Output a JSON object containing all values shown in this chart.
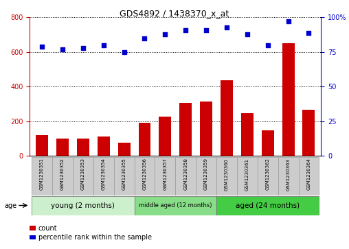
{
  "title": "GDS4892 / 1438370_x_at",
  "samples": [
    "GSM1230351",
    "GSM1230352",
    "GSM1230353",
    "GSM1230354",
    "GSM1230355",
    "GSM1230356",
    "GSM1230357",
    "GSM1230358",
    "GSM1230359",
    "GSM1230360",
    "GSM1230361",
    "GSM1230362",
    "GSM1230363",
    "GSM1230364"
  ],
  "counts": [
    120,
    100,
    100,
    110,
    75,
    190,
    225,
    305,
    315,
    435,
    245,
    145,
    650,
    265
  ],
  "percentiles": [
    79,
    77,
    78,
    80,
    75,
    85,
    88,
    91,
    91,
    93,
    88,
    80,
    97,
    89
  ],
  "groups": [
    {
      "label": "young (2 months)",
      "start": 0,
      "end": 5,
      "color": "#ccf0cc"
    },
    {
      "label": "middle aged (12 months)",
      "start": 5,
      "end": 9,
      "color": "#88dd88"
    },
    {
      "label": "aged (24 months)",
      "start": 9,
      "end": 14,
      "color": "#44cc44"
    }
  ],
  "bar_color": "#cc0000",
  "scatter_color": "#0000cc",
  "left_axis_color": "#cc0000",
  "right_axis_color": "#0000cc",
  "ylim_left": [
    0,
    800
  ],
  "ylim_right": [
    0,
    100
  ],
  "yticks_left": [
    0,
    200,
    400,
    600,
    800
  ],
  "yticks_right": [
    0,
    25,
    50,
    75,
    100
  ],
  "label_box_color": "#cccccc",
  "label_box_edge": "#999999"
}
